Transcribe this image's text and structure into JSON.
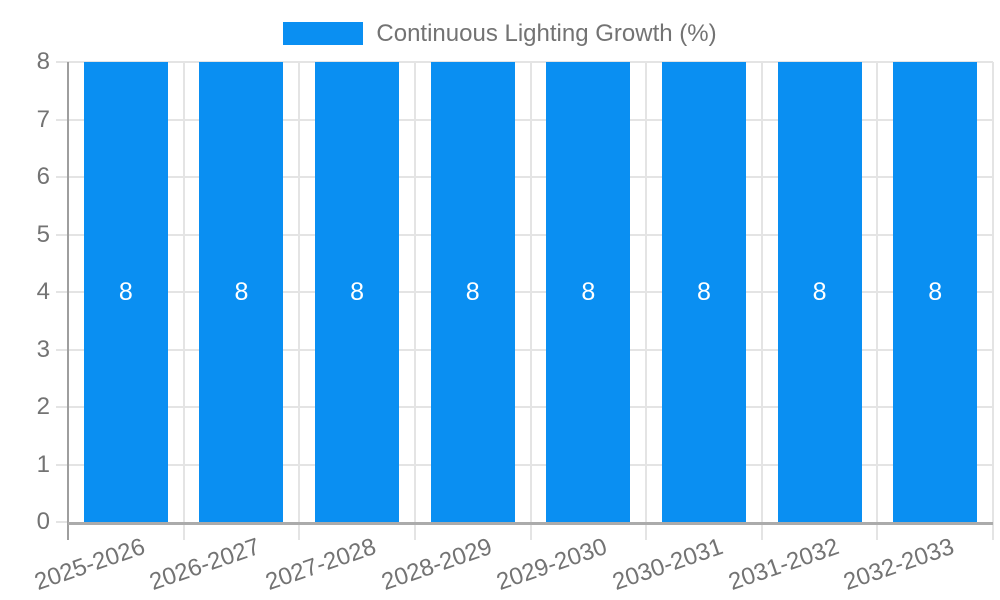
{
  "legend": {
    "label": "Continuous Lighting Growth (%)"
  },
  "chart_data": {
    "type": "bar",
    "title": "Continuous Lighting Growth (%)",
    "categories": [
      "2025-2026",
      "2026-2027",
      "2027-2028",
      "2028-2029",
      "2029-2030",
      "2030-2031",
      "2031-2032",
      "2032-2033"
    ],
    "values": [
      8,
      8,
      8,
      8,
      8,
      8,
      8,
      8
    ],
    "bar_labels": [
      "8",
      "8",
      "8",
      "8",
      "8",
      "8",
      "8",
      "8"
    ],
    "ylim": [
      0,
      8
    ],
    "yticks": [
      0,
      1,
      2,
      3,
      4,
      5,
      6,
      7,
      8
    ],
    "grid": true,
    "legend_position": "top-center",
    "series_name": "Continuous Lighting Growth (%)"
  },
  "colors": {
    "bar": "#0a8ff2",
    "grid": "#e4e4e4",
    "axis_y": "#9e9e9e",
    "axis_x": "#ababab",
    "text": "#737373",
    "bar_label": "#ffffff",
    "background": "#ffffff"
  }
}
